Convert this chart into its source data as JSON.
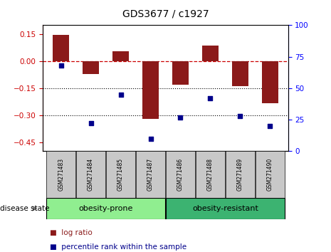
{
  "title": "GDS3677 / c1927",
  "samples": [
    "GSM271483",
    "GSM271484",
    "GSM271485",
    "GSM271487",
    "GSM271486",
    "GSM271488",
    "GSM271489",
    "GSM271490"
  ],
  "log_ratio": [
    0.145,
    -0.07,
    0.055,
    -0.32,
    -0.13,
    0.085,
    -0.14,
    -0.235
  ],
  "percentile_rank": [
    68,
    22,
    45,
    10,
    27,
    42,
    28,
    20
  ],
  "groups": [
    {
      "label": "obesity-prone",
      "indices": [
        0,
        1,
        2,
        3
      ],
      "color": "#90EE90"
    },
    {
      "label": "obesity-resistant",
      "indices": [
        4,
        5,
        6,
        7
      ],
      "color": "#3CB371"
    }
  ],
  "bar_color": "#8B1A1A",
  "dot_color": "#00008B",
  "ylim_left": [
    -0.5,
    0.2
  ],
  "ylim_right": [
    0,
    100
  ],
  "yticks_left": [
    -0.45,
    -0.3,
    -0.15,
    0,
    0.15
  ],
  "yticks_right": [
    0,
    25,
    50,
    75,
    100
  ],
  "hline_y": 0,
  "dotted_lines": [
    -0.15,
    -0.3
  ],
  "legend_items": [
    {
      "label": "log ratio",
      "color": "#8B1A1A"
    },
    {
      "label": "percentile rank within the sample",
      "color": "#00008B"
    }
  ],
  "disease_state_label": "disease state",
  "group_label_fontsize": 8,
  "sample_label_fontsize": 5.5,
  "axis_fontsize": 7.5,
  "title_fontsize": 10
}
